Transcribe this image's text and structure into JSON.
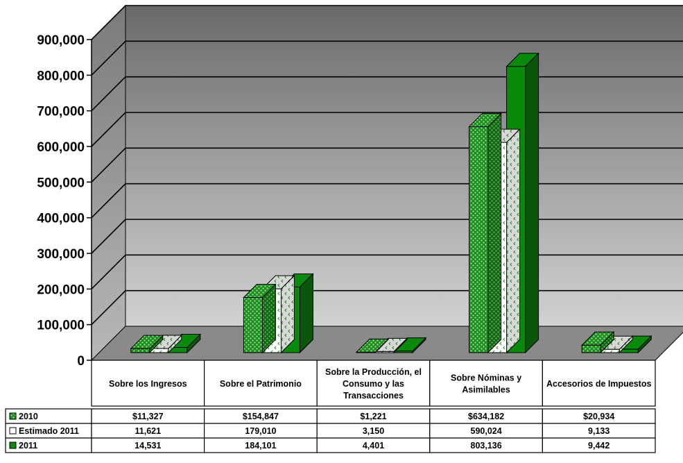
{
  "chart_data": {
    "type": "bar",
    "title": "",
    "xlabel": "",
    "ylabel": "",
    "ylim": [
      0,
      900000
    ],
    "y_ticks": [
      "0",
      "100,000",
      "200,000",
      "300,000",
      "400,000",
      "500,000",
      "600,000",
      "700,000",
      "800,000",
      "900,000"
    ],
    "grid": true,
    "legend_position": "table-left",
    "categories": [
      "Sobre los Ingresos",
      "Sobre el Patrimonio",
      "Sobre la Producción, el Consumo y las Transacciones",
      "Sobre Nóminas y Asimilables",
      "Accesorios de Impuestos"
    ],
    "series": [
      {
        "name": "2010",
        "values": [
          11327,
          154847,
          1221,
          634182,
          20934
        ],
        "display": [
          "$11,327",
          "$154,847",
          "$1,221",
          "$634,182",
          "$20,934"
        ],
        "color": "#1f8f1f",
        "pattern": "green-dots"
      },
      {
        "name": "Estimado 2011",
        "values": [
          11621,
          179010,
          3150,
          590024,
          9133
        ],
        "display": [
          "11,621",
          "179,010",
          "3,150",
          "590,024",
          "9,133"
        ],
        "color": "#ffffff",
        "pattern": "white-green-chevrons"
      },
      {
        "name": "2011",
        "values": [
          14531,
          184101,
          4401,
          803136,
          9442
        ],
        "display": [
          "14,531",
          "184,101",
          "4,401",
          "803,136",
          "9,442"
        ],
        "color": "#0a8a0a",
        "pattern": "solid"
      }
    ],
    "colors": {
      "wall_top": "#6a6a6a",
      "wall_mid": "#a5a5a5",
      "wall_bottom": "#d2d2d2",
      "side_wall": "#9a9a9a",
      "floor": "#8a8a8a",
      "green": "#0a8a0a",
      "green_dark": "#0a560a",
      "green_dot_bg": "#1c901c",
      "green_dot_fg": "#a8d8a8"
    }
  }
}
